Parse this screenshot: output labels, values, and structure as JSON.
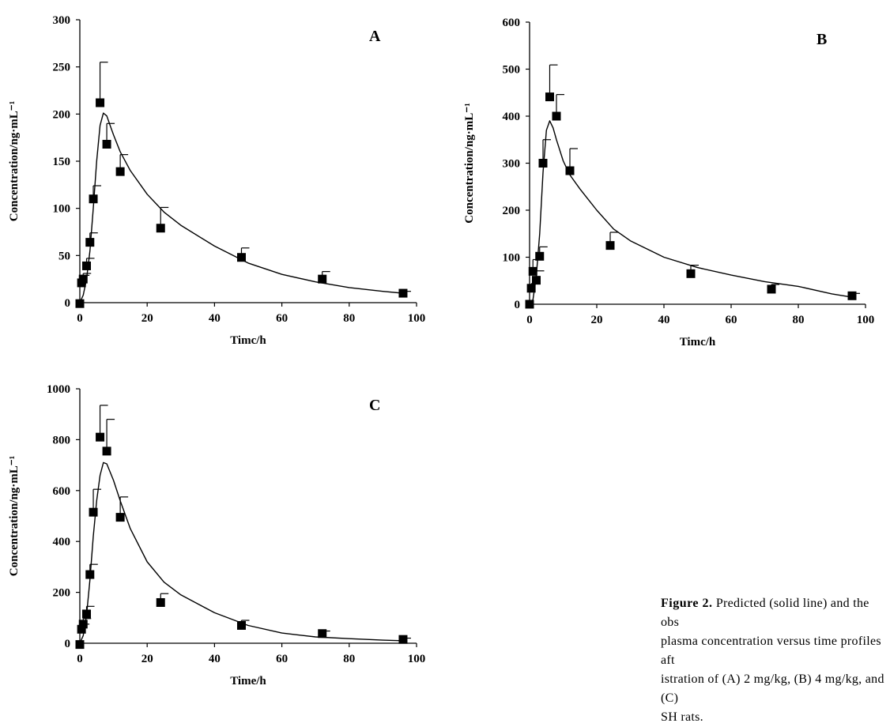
{
  "chart_data": [
    {
      "type": "line",
      "panel_label": "A",
      "xlabel": "Timc/h",
      "ylabel": "Concentration/ng·mL⁻¹",
      "xlim": [
        0,
        100
      ],
      "ylim": [
        0,
        300
      ],
      "xticks": [
        0,
        20,
        40,
        60,
        80,
        100
      ],
      "yticks": [
        0,
        50,
        100,
        150,
        200,
        250,
        300
      ],
      "observed": {
        "x": [
          0,
          0.5,
          1,
          2,
          3,
          4,
          6,
          8,
          12,
          24,
          48,
          72,
          96
        ],
        "y": [
          -1,
          21,
          25,
          39,
          64,
          110,
          212,
          168,
          139,
          79,
          48,
          25,
          10
        ],
        "error": [
          0,
          8,
          6,
          8,
          10,
          14,
          43,
          22,
          18,
          22,
          10,
          8,
          2
        ]
      },
      "predicted": {
        "x": [
          0,
          1,
          2,
          3,
          4,
          5,
          6,
          7,
          8,
          9,
          10,
          12,
          15,
          20,
          25,
          30,
          40,
          50,
          60,
          70,
          80,
          90,
          96
        ],
        "y": [
          0,
          8,
          25,
          55,
          100,
          150,
          188,
          201,
          198,
          188,
          178,
          160,
          140,
          115,
          96,
          82,
          60,
          42,
          30,
          22,
          16,
          12,
          10
        ]
      }
    },
    {
      "type": "line",
      "panel_label": "B",
      "xlabel": "Timc/h",
      "ylabel": "Concentration/ng·mL⁻¹",
      "xlim": [
        0,
        100
      ],
      "ylim": [
        0,
        600
      ],
      "xticks": [
        0,
        20,
        40,
        60,
        80,
        100
      ],
      "yticks": [
        0,
        100,
        200,
        300,
        400,
        500,
        600
      ],
      "observed": {
        "x": [
          0,
          0.5,
          1,
          2,
          3,
          4,
          6,
          8,
          12,
          24,
          48,
          72,
          96
        ],
        "y": [
          0,
          34,
          70,
          51,
          102,
          300,
          441,
          400,
          284,
          125,
          65,
          32,
          18
        ],
        "error": [
          0,
          10,
          25,
          20,
          20,
          50,
          68,
          46,
          47,
          28,
          18,
          10,
          5
        ]
      },
      "predicted": {
        "x": [
          0,
          1,
          2,
          3,
          4,
          5,
          6,
          7,
          8,
          10,
          12,
          15,
          20,
          25,
          30,
          40,
          50,
          60,
          70,
          80,
          90,
          96
        ],
        "y": [
          0,
          10,
          60,
          150,
          280,
          370,
          390,
          375,
          350,
          305,
          275,
          245,
          200,
          160,
          135,
          100,
          78,
          62,
          48,
          38,
          22,
          15
        ]
      }
    },
    {
      "type": "line",
      "panel_label": "C",
      "xlabel": "Time/h",
      "ylabel": "Concentration/ng·mL⁻¹",
      "xlim": [
        0,
        100
      ],
      "ylim": [
        0,
        1000
      ],
      "xticks": [
        0,
        20,
        40,
        60,
        80,
        100
      ],
      "yticks": [
        0,
        200,
        400,
        600,
        800,
        1000
      ],
      "observed": {
        "x": [
          0,
          0.5,
          1,
          2,
          3,
          4,
          6,
          8,
          12,
          24,
          48,
          72,
          96
        ],
        "y": [
          -5,
          55,
          75,
          115,
          270,
          515,
          810,
          755,
          495,
          160,
          70,
          38,
          15
        ],
        "error": [
          0,
          20,
          22,
          30,
          40,
          90,
          125,
          125,
          80,
          35,
          20,
          10,
          5
        ]
      },
      "predicted": {
        "x": [
          0,
          1,
          2,
          3,
          4,
          5,
          6,
          7,
          8,
          10,
          12,
          15,
          20,
          25,
          30,
          40,
          50,
          60,
          70,
          80,
          90,
          96
        ],
        "y": [
          0,
          30,
          110,
          250,
          420,
          560,
          660,
          710,
          705,
          640,
          560,
          450,
          320,
          240,
          190,
          120,
          70,
          40,
          25,
          18,
          12,
          10
        ]
      }
    }
  ],
  "caption": {
    "label": "Figure 2.",
    "text": "  Predicted (solid line) and the obs\nplasma concentration versus time profiles aft\nistration of (A) 2 mg/kg, (B) 4 mg/kg, and (C)\nSH rats."
  }
}
